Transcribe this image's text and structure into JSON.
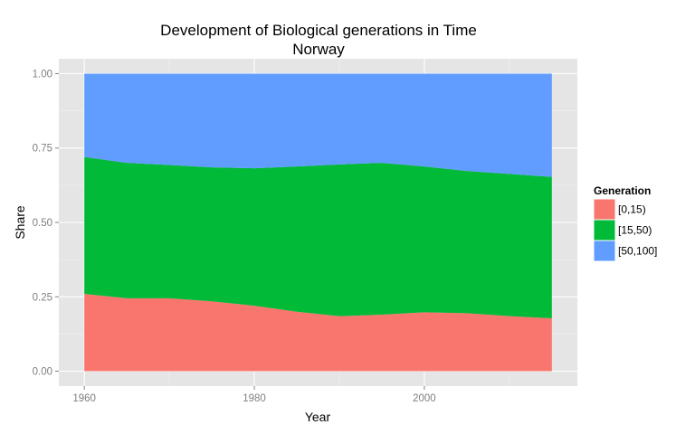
{
  "chart_data": {
    "type": "area",
    "stacked": true,
    "title": "Development of Biological generations in Time",
    "subtitle": "Norway",
    "xlabel": "Year",
    "ylabel": "Share",
    "xlim": [
      1957,
      2018
    ],
    "ylim": [
      -0.05,
      1.05
    ],
    "xticks": [
      1960,
      1980,
      2000
    ],
    "xtick_labels": [
      "1960",
      "1980",
      "2000"
    ],
    "yticks": [
      0,
      0.25,
      0.5,
      0.75,
      1.0
    ],
    "ytick_labels": [
      "0.00",
      "0.25",
      "0.50",
      "0.75",
      "1.00"
    ],
    "grid": true,
    "legend": {
      "title": "Generation",
      "position": "right"
    },
    "x": [
      1960,
      1965,
      1970,
      1975,
      1980,
      1985,
      1990,
      1995,
      2000,
      2005,
      2010,
      2015
    ],
    "series": [
      {
        "name": "[0,15)",
        "color": "#F8766D",
        "values": [
          0.26,
          0.245,
          0.245,
          0.235,
          0.22,
          0.2,
          0.185,
          0.19,
          0.198,
          0.195,
          0.185,
          0.178
        ]
      },
      {
        "name": "[15,50)",
        "color": "#00BA38",
        "values": [
          0.46,
          0.455,
          0.448,
          0.45,
          0.462,
          0.488,
          0.51,
          0.51,
          0.49,
          0.478,
          0.478,
          0.475
        ]
      },
      {
        "name": "[50,100]",
        "color": "#619CFF",
        "values": [
          0.28,
          0.3,
          0.307,
          0.315,
          0.318,
          0.312,
          0.305,
          0.3,
          0.312,
          0.327,
          0.337,
          0.347
        ]
      }
    ]
  }
}
